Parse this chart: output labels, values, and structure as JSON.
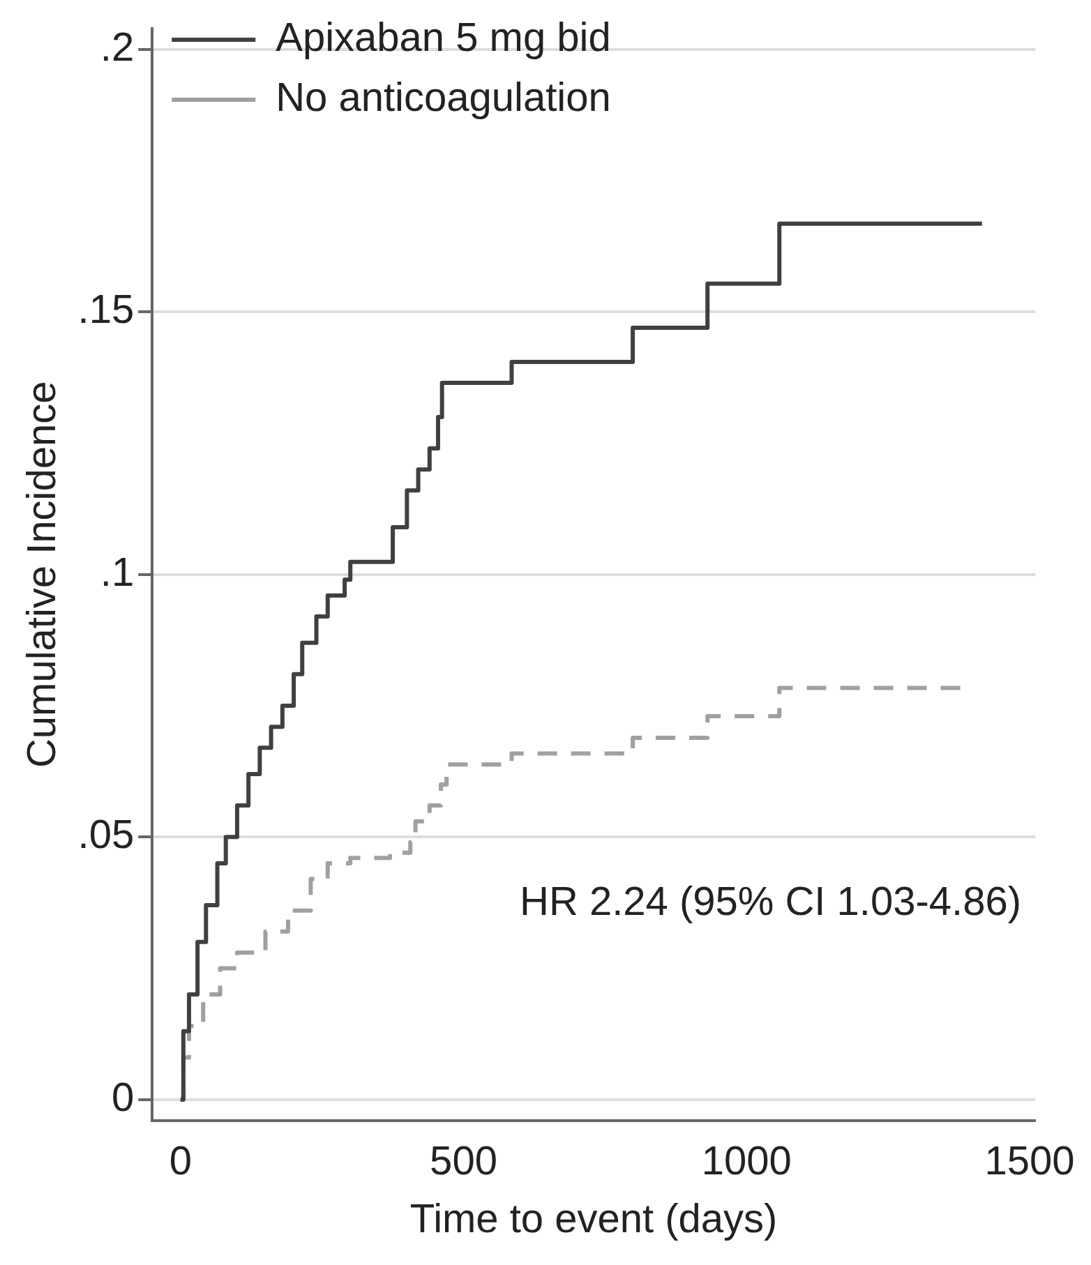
{
  "chart_data": {
    "type": "step",
    "xlabel": "Time to event (days)",
    "ylabel": "Cumulative Incidence",
    "xlim": [
      -50,
      1510
    ],
    "xticks": [
      0,
      500,
      1000,
      1500
    ],
    "ylim": [
      -0.004,
      0.204
    ],
    "yticks": [
      0,
      {
        "value": 0.05,
        "label": ".05"
      },
      {
        "value": 0.1,
        "label": ".1"
      },
      {
        "value": 0.15,
        "label": ".15"
      },
      {
        "value": 0.2,
        "label": ".2"
      }
    ],
    "grid": "y",
    "legend": "top left",
    "marker": "none",
    "series": [
      {
        "name": "Apixaban 5 mg bid",
        "color": "#404040",
        "line_style": "solid",
        "x": [
          0,
          5,
          15,
          30,
          45,
          65,
          80,
          100,
          120,
          140,
          160,
          180,
          200,
          215,
          240,
          260,
          290,
          300,
          375,
          400,
          420,
          440,
          455,
          462,
          585,
          799,
          931,
          1058,
          1416
        ],
        "values": [
          0,
          0.013,
          0.02,
          0.03,
          0.037,
          0.045,
          0.05,
          0.056,
          0.062,
          0.067,
          0.071,
          0.075,
          0.081,
          0.087,
          0.092,
          0.096,
          0.099,
          0.1024,
          0.109,
          0.116,
          0.12,
          0.124,
          0.13,
          0.1365,
          0.1405,
          0.147,
          0.1554,
          0.1668,
          0.1668
        ]
      },
      {
        "name": "No anticoagulation",
        "color": "#a0a0a0",
        "line_style": "dashed",
        "x": [
          0,
          5,
          15,
          40,
          70,
          100,
          150,
          190,
          230,
          260,
          300,
          370,
          406,
          415,
          440,
          460,
          470,
          585,
          799,
          931,
          1058,
          1390
        ],
        "values": [
          0,
          0.008,
          0.014,
          0.02,
          0.025,
          0.028,
          0.032,
          0.036,
          0.042,
          0.045,
          0.046,
          0.047,
          0.049,
          0.053,
          0.056,
          0.06,
          0.0638,
          0.0659,
          0.0689,
          0.073,
          0.0784,
          0.0784
        ]
      }
    ],
    "annotations": [
      "HR 2.24 (95% CI 1.03-4.86)"
    ]
  }
}
